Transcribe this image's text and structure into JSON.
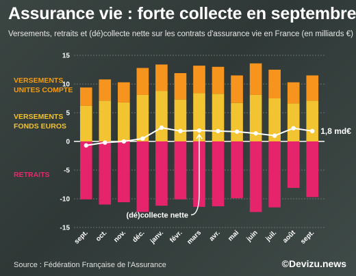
{
  "header": {
    "title": "Assurance vie : forte collecte en septembre",
    "subtitle": "Versements, retraits et (dé)collecte nette sur les contrats d'assurance vie en France (en milliards €)"
  },
  "legend": {
    "uc_line1": "VERSEMENTS",
    "uc_line2": "UNITES COMPTE",
    "fe_line1": "VERSEMENTS",
    "fe_line2": "FONDS EUROS",
    "retraits": "RETRAITS"
  },
  "footer": {
    "source": "Source : Fédération Française de l'Assurance",
    "brand": "©Devizu.news"
  },
  "colors": {
    "unites_compte": "#f7941d",
    "fonds_euros": "#f2c431",
    "retraits": "#e6246c",
    "net_line": "#ffffff",
    "grid": "#7a8582"
  },
  "chart_data": {
    "type": "bar",
    "stacked": true,
    "categories": [
      "sept.",
      "oct.",
      "nov.",
      "déc.",
      "janv.",
      "févr.",
      "mars",
      "avr.",
      "mai",
      "juin",
      "juil.",
      "août",
      "sept."
    ],
    "series": [
      {
        "name": "VERSEMENTS FONDS EUROS",
        "values": [
          6.2,
          7.1,
          6.8,
          8.1,
          8.8,
          7.3,
          8.4,
          8.3,
          6.7,
          8.1,
          7.5,
          6.6,
          7.1
        ]
      },
      {
        "name": "VERSEMENTS UNITES COMPTE",
        "values": [
          3.2,
          3.7,
          3.5,
          4.7,
          4.6,
          4.6,
          4.8,
          4.7,
          4.8,
          5.5,
          5.0,
          3.7,
          4.4
        ]
      },
      {
        "name": "RETRAITS",
        "values": [
          -10.1,
          -11.0,
          -10.6,
          -12.3,
          -11.2,
          -10.1,
          -11.4,
          -11.3,
          -9.9,
          -12.3,
          -11.5,
          -8.1,
          -9.7
        ]
      },
      {
        "name": "(dé)collecte nette",
        "type": "line",
        "values": [
          -0.7,
          -0.2,
          0.0,
          0.5,
          2.4,
          1.8,
          1.9,
          1.8,
          1.7,
          1.4,
          1.0,
          2.3,
          1.8
        ]
      }
    ],
    "ylim": [
      -15,
      15
    ],
    "yticks": [
      -15,
      -10,
      -5,
      0,
      5,
      10,
      15
    ],
    "grid": true,
    "annotations": {
      "end_label": "1,8 md€",
      "line_label": "(dé)collecte nette"
    }
  }
}
